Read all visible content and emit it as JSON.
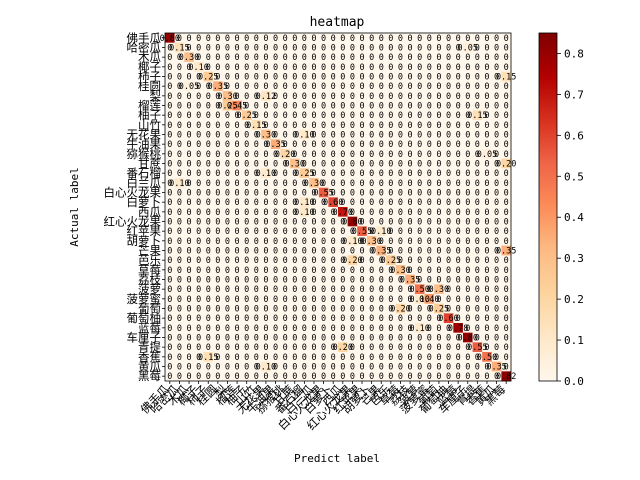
{
  "chart_data": {
    "type": "heatmap",
    "title": "heatmap",
    "xlabel": "Predict label",
    "ylabel": "Actual label",
    "colormap": "OrRd",
    "vmin": 0,
    "vmax": 0.85,
    "colorbar_ticks": [
      "0.0",
      "0.1",
      "0.2",
      "0.3",
      "0.4",
      "0.5",
      "0.6",
      "0.7",
      "0.8"
    ],
    "labels": [
      "佛手瓜",
      "哈密瓜",
      "木瓜",
      "椰子",
      "柿子",
      "桂圆",
      "梨",
      "榴莲",
      "柚子",
      "山竹",
      "无花果",
      "牛油果",
      "猕猴桃",
      "甘蔗",
      "番石榴",
      "白兰瓜",
      "白心火龙果",
      "白萝卜",
      "西瓜",
      "红心火龙果",
      "红苹果",
      "胡萝卜",
      "芒果",
      "芭乐",
      "草莓",
      "荔枝",
      "菠萝",
      "菠萝蜜",
      "葡萄",
      "葡萄柚",
      "蓝莓",
      "车厘子",
      "青提",
      "香蕉",
      "黄瓜",
      "黑莓"
    ],
    "diagonal": [
      0.8,
      0.15,
      0.3,
      0.1,
      0.25,
      0.35,
      0.3,
      0.45,
      0.25,
      0.15,
      0.3,
      0.35,
      0.2,
      0.3,
      0.25,
      0.3,
      0.55,
      0.6,
      0.7,
      0.8,
      0.55,
      0.3,
      0.35,
      0.25,
      0.3,
      0.35,
      0.5,
      0.4,
      0.25,
      0.6,
      0.78,
      0.8,
      0.55,
      0.5,
      0.35,
      0.82
    ],
    "off_diagonal": [
      {
        "row": 1,
        "col": 31,
        "value": 0.05
      },
      {
        "row": 4,
        "col": 35,
        "value": 0.15
      },
      {
        "row": 5,
        "col": 2,
        "value": 0.05
      },
      {
        "row": 6,
        "col": 10,
        "value": 0.12
      },
      {
        "row": 7,
        "col": 6,
        "value": 0.25
      },
      {
        "row": 8,
        "col": 32,
        "value": 0.15
      },
      {
        "row": 10,
        "col": 14,
        "value": 0.1
      },
      {
        "row": 12,
        "col": 33,
        "value": 0.05
      },
      {
        "row": 13,
        "col": 35,
        "value": 0.2
      },
      {
        "row": 14,
        "col": 10,
        "value": 0.1
      },
      {
        "row": 15,
        "col": 1,
        "value": 0.1
      },
      {
        "row": 17,
        "col": 14,
        "value": 0.1
      },
      {
        "row": 18,
        "col": 14,
        "value": 0.1
      },
      {
        "row": 20,
        "col": 22,
        "value": 0.1
      },
      {
        "row": 21,
        "col": 19,
        "value": 0.1
      },
      {
        "row": 22,
        "col": 35,
        "value": 0.35
      },
      {
        "row": 23,
        "col": 19,
        "value": 0.2
      },
      {
        "row": 26,
        "col": 28,
        "value": 0.3
      },
      {
        "row": 27,
        "col": 26,
        "value": 0.1
      },
      {
        "row": 28,
        "col": 24,
        "value": 0.2
      },
      {
        "row": 30,
        "col": 26,
        "value": 0.1
      },
      {
        "row": 32,
        "col": 18,
        "value": 0.2
      },
      {
        "row": 33,
        "col": 4,
        "value": 0.15
      },
      {
        "row": 34,
        "col": 10,
        "value": 0.1
      }
    ]
  }
}
